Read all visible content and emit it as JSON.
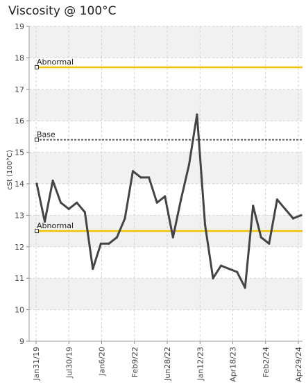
{
  "chart_data": {
    "type": "line",
    "title": "Viscosity @ 100°C",
    "ylabel": "cSt (100°C)",
    "xlabel": "",
    "ylim": [
      9,
      19
    ],
    "yticks": [
      9,
      10,
      11,
      12,
      13,
      14,
      15,
      16,
      17,
      18,
      19
    ],
    "grid": true,
    "xtick_labels": [
      "Jan31/19",
      "Jul30/19",
      "Jan6/20",
      "Feb9/22",
      "Jun28/22",
      "Jan12/23",
      "Apr18/23",
      "Feb2/24",
      "Apr29/24"
    ],
    "series": [
      {
        "color": "#444444",
        "values": [
          14.0,
          12.8,
          14.1,
          13.4,
          13.2,
          13.4,
          13.1,
          11.3,
          12.1,
          12.1,
          12.3,
          12.9,
          14.4,
          14.2,
          14.2,
          13.4,
          13.6,
          12.3,
          13.5,
          14.6,
          16.2,
          12.7,
          11.0,
          11.4,
          11.3,
          11.2,
          10.7,
          13.3,
          12.3,
          12.1,
          13.5,
          13.2,
          12.9,
          13.0
        ]
      }
    ],
    "reference_lines": [
      {
        "name": "Abnormal",
        "value": 17.7,
        "color": "#f2c400"
      },
      {
        "name": "Base",
        "value": 15.4,
        "color": "#555555"
      },
      {
        "name": "Abnormal",
        "value": 12.5,
        "color": "#f2c400"
      }
    ]
  }
}
